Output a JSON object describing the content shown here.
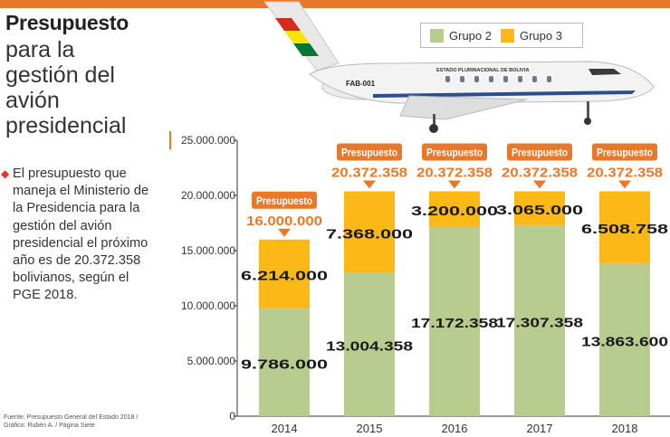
{
  "title": {
    "bold": "Presupuesto",
    "lines": [
      "para la",
      "gestión del",
      "avión",
      "presidencial"
    ]
  },
  "body_text": "El presupuesto que maneja el Ministerio de la Presidencia para la gestión del avión presidencial el próximo año es de 20.372.358 bolivianos, según el PGE 2018.",
  "source": [
    "Fuente: Presupuesto General del Estado 2018 /",
    "Gráfico: Rubén A. / Página Siete"
  ],
  "plane": {
    "registration": "FAB-001",
    "fuselage_text": "ESTADO PLURINACIONAL DE BOLIVIA"
  },
  "colors": {
    "grupo2": "#b9cc8f",
    "grupo3": "#fbb817",
    "accent": "#e8782a"
  },
  "chart_data": {
    "type": "bar",
    "stacked": true,
    "categories": [
      "2014",
      "2015",
      "2016",
      "2017",
      "2018"
    ],
    "series": [
      {
        "name": "Grupo 2",
        "values": [
          9786000,
          13004358,
          17172358,
          17307358,
          13863600
        ],
        "labels": [
          "9.786.000",
          "13.004.358",
          "17.172.358",
          "17.307.358",
          "13.863.600"
        ]
      },
      {
        "name": "Grupo 3",
        "values": [
          6214000,
          7368000,
          3200000,
          3065000,
          6508758
        ],
        "labels": [
          "6.214.000",
          "7.368.000",
          "3.200.000",
          "3.065.000",
          "6.508.758"
        ]
      }
    ],
    "totals": [
      16000000,
      20372358,
      20372358,
      20372358,
      20372358
    ],
    "total_labels": [
      "16.000.000",
      "20.372.358",
      "20.372.358",
      "20.372.358",
      "20.372.358"
    ],
    "callout_label": "Presupuesto",
    "ylim": [
      0,
      25000000
    ],
    "yticks": [
      0,
      5000000,
      10000000,
      15000000,
      20000000,
      25000000
    ],
    "ytick_labels": [
      "0",
      "5.000.000",
      "10.000.000",
      "15.000.000",
      "20.000.000",
      "25.000.000"
    ],
    "legend": {
      "position": "top-right",
      "entries": [
        "Grupo 2",
        "Grupo 3"
      ]
    },
    "grid": false
  }
}
